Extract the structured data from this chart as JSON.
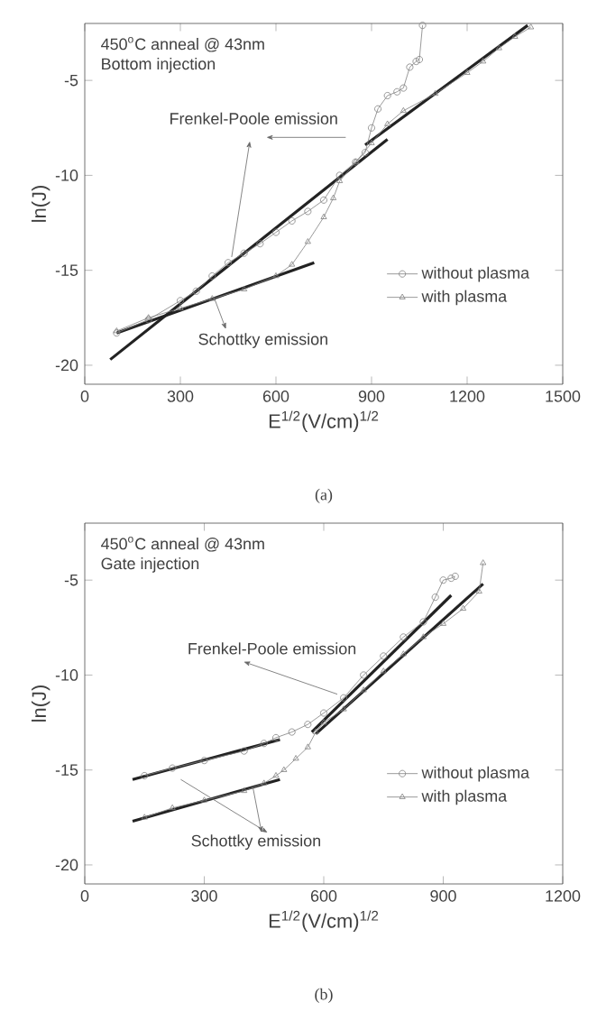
{
  "chart_data": [
    {
      "type": "line",
      "title": "450$^{o}$C anneal @ 43nm",
      "subtitle": "Bottom injection",
      "xlabel": "E$^{1/2}$(V/cm)$^{1/2}$",
      "ylabel": "ln(J)",
      "xlim": [
        0,
        1500
      ],
      "ylim": [
        -21,
        -2
      ],
      "xticks": [
        0,
        300,
        600,
        900,
        1200,
        1500
      ],
      "yticks": [
        -20,
        -15,
        -10,
        -5
      ],
      "grid": false,
      "legend": "bottom right",
      "annotations": [
        "Frenkel-Poole emission",
        "Schottky emission",
        "(a)"
      ],
      "series": [
        {
          "name": "without plasma",
          "color": "#808080",
          "marker": "circle",
          "x": [
            100,
            200,
            300,
            350,
            400,
            450,
            500,
            550,
            600,
            650,
            700,
            750,
            800,
            850,
            880,
            900,
            920,
            950,
            980,
            1000,
            1020,
            1040,
            1050,
            1060
          ],
          "values": [
            -18.3,
            -17.6,
            -16.6,
            -16.1,
            -15.3,
            -14.6,
            -14.1,
            -13.6,
            -13.0,
            -12.4,
            -11.9,
            -11.3,
            -10.0,
            -9.3,
            -8.8,
            -7.5,
            -6.5,
            -5.8,
            -5.6,
            -5.4,
            -4.3,
            -4.0,
            -3.9,
            -2.1
          ]
        },
        {
          "name": "with plasma",
          "color": "#808080",
          "marker": "triangle",
          "x": [
            100,
            200,
            300,
            400,
            500,
            600,
            650,
            700,
            750,
            780,
            800,
            850,
            900,
            950,
            1000,
            1100,
            1200,
            1250,
            1300,
            1350,
            1400
          ],
          "values": [
            -18.2,
            -17.5,
            -17.0,
            -16.5,
            -16.0,
            -15.3,
            -14.7,
            -13.5,
            -12.2,
            -11.2,
            -10.3,
            -9.3,
            -8.3,
            -7.3,
            -6.6,
            -5.7,
            -4.6,
            -4.0,
            -3.3,
            -2.7,
            -2.2
          ]
        },
        {
          "color": "#222222",
          "marker": "none",
          "x": [
            80,
            950
          ],
          "values": [
            -19.7,
            -8.1
          ]
        },
        {
          "color": "#222222",
          "marker": "none",
          "x": [
            100,
            720
          ],
          "values": [
            -18.3,
            -14.6
          ]
        },
        {
          "color": "#222222",
          "marker": "none",
          "x": [
            880,
            1390
          ],
          "values": [
            -8.4,
            -2.1
          ]
        }
      ]
    },
    {
      "type": "line",
      "title": "450$^{o}$C anneal @ 43nm",
      "subtitle": "Gate injection",
      "xlabel": "E$^{1/2}$(V/cm)$^{1/2}$",
      "ylabel": "ln(J)",
      "xlim": [
        0,
        1200
      ],
      "ylim": [
        -21,
        -2
      ],
      "xticks": [
        0,
        300,
        600,
        900,
        1200
      ],
      "yticks": [
        -20,
        -15,
        -10,
        -5
      ],
      "grid": false,
      "legend": "bottom right",
      "annotations": [
        {
          "text": "Frenkel-Poole emission",
          "x": 633,
          "y": -11.0
        },
        {
          "text": "Schottky emission",
          "x": 422,
          "y": -15.9
        },
        "(b)"
      ],
      "series": [
        {
          "name": "without plasma",
          "color": "#808080",
          "marker": "circle",
          "x": [
            150,
            220,
            300,
            400,
            450,
            480,
            520,
            560,
            600,
            650,
            700,
            750,
            800,
            850,
            880,
            900,
            920,
            930
          ],
          "values": [
            -15.3,
            -14.9,
            -14.5,
            -14.0,
            -13.6,
            -13.3,
            -13.0,
            -12.6,
            -12.0,
            -11.2,
            -10.0,
            -9.0,
            -8.0,
            -7.2,
            -5.9,
            -5.0,
            -4.9,
            -4.8
          ]
        },
        {
          "name": "with plasma",
          "color": "#808080",
          "marker": "triangle",
          "x": [
            150,
            220,
            300,
            400,
            450,
            480,
            500,
            530,
            560,
            580,
            600,
            650,
            700,
            750,
            800,
            850,
            900,
            950,
            990,
            1000
          ],
          "values": [
            -17.5,
            -17.0,
            -16.6,
            -16.1,
            -15.7,
            -15.3,
            -15.0,
            -14.4,
            -13.8,
            -13.0,
            -12.5,
            -11.8,
            -10.8,
            -9.8,
            -8.9,
            -8.0,
            -7.3,
            -6.5,
            -5.6,
            -4.1
          ]
        },
        {
          "color": "#222222",
          "marker": "none",
          "x": [
            120,
            490
          ],
          "values": [
            -15.5,
            -13.4
          ]
        },
        {
          "color": "#222222",
          "marker": "none",
          "x": [
            120,
            490
          ],
          "values": [
            -17.7,
            -15.5
          ]
        },
        {
          "color": "#222222",
          "marker": "none",
          "x": [
            570,
            920
          ],
          "values": [
            -13.0,
            -5.8
          ]
        },
        {
          "color": "#222222",
          "marker": "none",
          "x": [
            580,
            1000
          ],
          "values": [
            -13.1,
            -5.2
          ]
        }
      ]
    }
  ]
}
